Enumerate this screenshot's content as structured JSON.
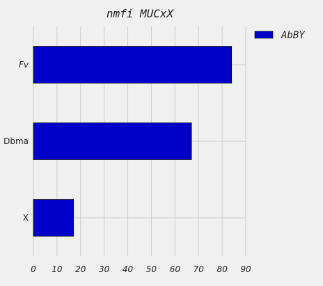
{
  "chart_data": {
    "type": "bar",
    "orientation": "horizontal",
    "title": "nmfi MUCxX",
    "xlabel": "",
    "ylabel": "",
    "categories": [
      "X",
      "Dbma",
      "Fv"
    ],
    "category_label_italic": [
      false,
      false,
      true
    ],
    "series": [
      {
        "name": "AbBY",
        "values": [
          17,
          67,
          84
        ],
        "color": "#0000c8"
      }
    ],
    "xlim": [
      0,
      90
    ],
    "xticks": [
      0,
      10,
      20,
      30,
      40,
      50,
      60,
      70,
      80,
      90
    ],
    "grid": true,
    "legend": "top-right",
    "background": "#f0f0f0",
    "grid_color": "#cbcbcb"
  }
}
